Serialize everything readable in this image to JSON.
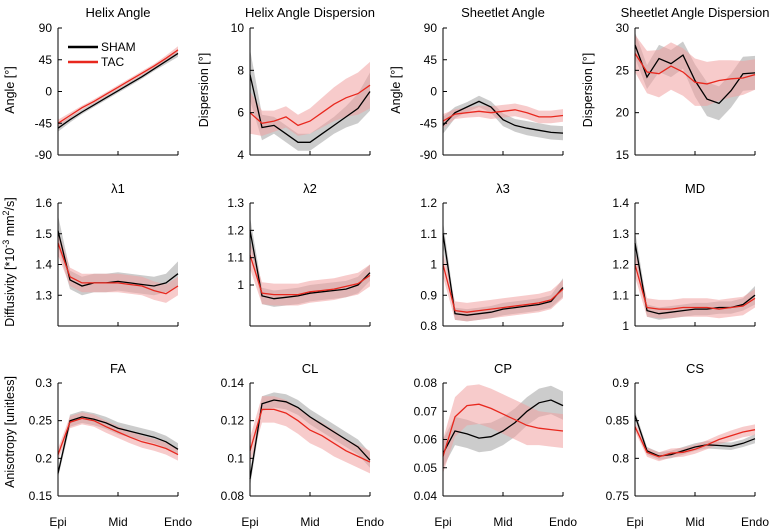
{
  "figure": {
    "row_ylabels": [
      "Angle [°]",
      "Dispersion [°]",
      "Angle [°]",
      "Dispersion [°]",
      "Diffusivity [*10",
      "-3",
      " mm",
      "2",
      "/s]",
      "Anisotropy [unitless]"
    ],
    "xticks": [
      "Epi",
      "Mid",
      "Endo"
    ]
  },
  "legend": [
    {
      "name": "SHAM",
      "color": "#000000"
    },
    {
      "name": "TAC",
      "color": "#e8281e"
    }
  ],
  "colors": {
    "sham": "#000000",
    "sham_band": "#9a9a9a",
    "tac": "#e8281e",
    "tac_band": "#f0a0a0"
  },
  "chart_data": [
    {
      "type": "line",
      "title": "Helix Angle",
      "ylabel": "Angle [°]",
      "ylim": [
        -90,
        90
      ],
      "yticks": [
        "90",
        "45",
        "0",
        "-45",
        "-90"
      ],
      "ytick_values": [
        90,
        45,
        0,
        -45,
        -90
      ],
      "x": [
        0,
        0.1,
        0.2,
        0.3,
        0.4,
        0.5,
        0.6,
        0.7,
        0.8,
        0.9,
        1
      ],
      "series": [
        {
          "name": "SHAM",
          "values": [
            -52,
            -40,
            -29,
            -19,
            -9,
            1,
            11,
            21,
            32,
            43,
            54
          ],
          "band": [
            5,
            4,
            3,
            3,
            3,
            3,
            3,
            3,
            3,
            4,
            5
          ]
        },
        {
          "name": "TAC",
          "values": [
            -45,
            -34,
            -23,
            -14,
            -4,
            6,
            16,
            26,
            36,
            47,
            59
          ],
          "band": [
            5,
            4,
            3,
            3,
            3,
            3,
            3,
            3,
            3,
            4,
            5
          ]
        }
      ]
    },
    {
      "type": "line",
      "title": "Helix Angle Dispersion",
      "ylabel": "Dispersion [°]",
      "ylim": [
        4,
        10
      ],
      "yticks": [
        "10",
        "8",
        "6",
        "4"
      ],
      "ytick_values": [
        10,
        8,
        6,
        4
      ],
      "x": [
        0,
        0.1,
        0.2,
        0.3,
        0.4,
        0.5,
        0.6,
        0.7,
        0.8,
        0.9,
        1
      ],
      "series": [
        {
          "name": "SHAM",
          "values": [
            7.8,
            5.3,
            5.4,
            5.0,
            4.6,
            4.6,
            5.0,
            5.4,
            5.8,
            6.2,
            7.0
          ],
          "band": [
            1.2,
            0.6,
            0.4,
            0.4,
            0.4,
            0.4,
            0.4,
            0.4,
            0.5,
            0.7,
            0.9
          ]
        },
        {
          "name": "TAC",
          "values": [
            6.0,
            5.5,
            5.6,
            5.8,
            5.4,
            5.6,
            6.0,
            6.4,
            6.7,
            6.9,
            7.3
          ],
          "band": [
            1.0,
            0.6,
            0.5,
            0.5,
            0.5,
            0.6,
            0.7,
            0.8,
            0.9,
            1.0,
            1.1
          ]
        }
      ]
    },
    {
      "type": "line",
      "title": "Sheetlet Angle",
      "ylabel": "Angle [°]",
      "ylim": [
        -90,
        90
      ],
      "yticks": [
        "90",
        "45",
        "0",
        "-45",
        "-90"
      ],
      "ytick_values": [
        90,
        45,
        0,
        -45,
        -90
      ],
      "x": [
        0,
        0.1,
        0.2,
        0.3,
        0.4,
        0.5,
        0.6,
        0.7,
        0.8,
        0.9,
        1
      ],
      "series": [
        {
          "name": "SHAM",
          "values": [
            -48,
            -30,
            -22,
            -14,
            -22,
            -40,
            -48,
            -52,
            -55,
            -58,
            -59
          ],
          "band": [
            12,
            8,
            7,
            8,
            8,
            9,
            9,
            10,
            10,
            10,
            10
          ]
        },
        {
          "name": "TAC",
          "values": [
            -42,
            -32,
            -30,
            -28,
            -30,
            -28,
            -26,
            -30,
            -36,
            -36,
            -34
          ],
          "band": [
            10,
            7,
            7,
            8,
            9,
            9,
            9,
            9,
            9,
            9,
            9
          ]
        }
      ]
    },
    {
      "type": "line",
      "title": "Sheetlet Angle Dispersion",
      "ylabel": "Dispersion [°]",
      "ylim": [
        15,
        30
      ],
      "yticks": [
        "30",
        "25",
        "20",
        "15"
      ],
      "ytick_values": [
        30,
        25,
        20,
        15
      ],
      "x": [
        0,
        0.1,
        0.2,
        0.3,
        0.4,
        0.5,
        0.6,
        0.7,
        0.8,
        0.9,
        1
      ],
      "series": [
        {
          "name": "SHAM",
          "values": [
            28,
            24.2,
            26.4,
            25.8,
            26.8,
            23.8,
            21.6,
            21.1,
            22.6,
            24.6,
            24.7
          ],
          "band": [
            1.5,
            1.4,
            1.6,
            1.6,
            1.6,
            1.9,
            2.0,
            2.0,
            2.0,
            2.0,
            2.0
          ]
        },
        {
          "name": "TAC",
          "values": [
            27,
            24.8,
            24.6,
            25.5,
            24.8,
            23.6,
            23.4,
            23.8,
            24.0,
            24.1,
            24.5
          ],
          "band": [
            2.2,
            2.5,
            2.8,
            2.8,
            2.8,
            2.8,
            2.6,
            2.4,
            2.2,
            2.0,
            1.8
          ]
        }
      ]
    },
    {
      "type": "line",
      "title": "λ1",
      "ylabel": "",
      "ylim": [
        1.2,
        1.6
      ],
      "yticks": [
        "1.6",
        "1.5",
        "1.4",
        "1.3"
      ],
      "ytick_values": [
        1.6,
        1.5,
        1.4,
        1.3
      ],
      "x": [
        0,
        0.1,
        0.2,
        0.3,
        0.4,
        0.5,
        0.6,
        0.7,
        0.8,
        0.9,
        1
      ],
      "series": [
        {
          "name": "SHAM",
          "values": [
            1.51,
            1.35,
            1.33,
            1.34,
            1.34,
            1.345,
            1.34,
            1.335,
            1.33,
            1.34,
            1.37
          ],
          "band": [
            0.05,
            0.03,
            0.03,
            0.03,
            0.03,
            0.03,
            0.03,
            0.03,
            0.03,
            0.03,
            0.04
          ]
        },
        {
          "name": "TAC",
          "values": [
            1.47,
            1.36,
            1.34,
            1.34,
            1.34,
            1.34,
            1.335,
            1.33,
            1.315,
            1.305,
            1.33
          ],
          "band": [
            0.04,
            0.03,
            0.03,
            0.03,
            0.03,
            0.03,
            0.03,
            0.03,
            0.03,
            0.03,
            0.03
          ]
        }
      ]
    },
    {
      "type": "line",
      "title": "λ2",
      "ylabel": "",
      "ylim": [
        0.85,
        1.3
      ],
      "yticks": [
        "1.3",
        "1.2",
        "1.1",
        "1"
      ],
      "ytick_values": [
        1.3,
        1.2,
        1.1,
        1
      ],
      "x": [
        0,
        0.1,
        0.2,
        0.3,
        0.4,
        0.5,
        0.6,
        0.7,
        0.8,
        0.9,
        1
      ],
      "series": [
        {
          "name": "SHAM",
          "values": [
            1.2,
            0.96,
            0.95,
            0.955,
            0.96,
            0.97,
            0.975,
            0.98,
            0.985,
            1.0,
            1.045
          ],
          "band": [
            0.05,
            0.03,
            0.03,
            0.03,
            0.03,
            0.03,
            0.03,
            0.03,
            0.03,
            0.03,
            0.03
          ]
        },
        {
          "name": "TAC",
          "values": [
            1.11,
            0.97,
            0.965,
            0.965,
            0.965,
            0.975,
            0.98,
            0.985,
            0.995,
            1.005,
            1.035
          ],
          "band": [
            0.05,
            0.04,
            0.04,
            0.04,
            0.04,
            0.04,
            0.04,
            0.04,
            0.04,
            0.04,
            0.04
          ]
        }
      ]
    },
    {
      "type": "line",
      "title": "λ3",
      "ylabel": "",
      "ylim": [
        0.8,
        1.2
      ],
      "yticks": [
        "1.2",
        "1.1",
        "1",
        "0.9",
        "0.8"
      ],
      "ytick_values": [
        1.2,
        1.1,
        1,
        0.9,
        0.8
      ],
      "x": [
        0,
        0.1,
        0.2,
        0.3,
        0.4,
        0.5,
        0.6,
        0.7,
        0.8,
        0.9,
        1
      ],
      "series": [
        {
          "name": "SHAM",
          "values": [
            1.1,
            0.84,
            0.835,
            0.84,
            0.845,
            0.855,
            0.86,
            0.865,
            0.87,
            0.88,
            0.925
          ],
          "band": [
            0.04,
            0.02,
            0.02,
            0.02,
            0.02,
            0.02,
            0.02,
            0.02,
            0.02,
            0.02,
            0.03
          ]
        },
        {
          "name": "TAC",
          "values": [
            1.0,
            0.85,
            0.845,
            0.85,
            0.855,
            0.86,
            0.865,
            0.87,
            0.875,
            0.885,
            0.92
          ],
          "band": [
            0.04,
            0.03,
            0.03,
            0.03,
            0.03,
            0.03,
            0.03,
            0.03,
            0.03,
            0.03,
            0.03
          ]
        }
      ]
    },
    {
      "type": "line",
      "title": "MD",
      "ylabel": "",
      "ylim": [
        1,
        1.4
      ],
      "yticks": [
        "1.4",
        "1.3",
        "1.2",
        "1.1",
        "1"
      ],
      "ytick_values": [
        1.4,
        1.3,
        1.2,
        1.1,
        1
      ],
      "x": [
        0,
        0.1,
        0.2,
        0.3,
        0.4,
        0.5,
        0.6,
        0.7,
        0.8,
        0.9,
        1
      ],
      "series": [
        {
          "name": "SHAM",
          "values": [
            1.27,
            1.05,
            1.04,
            1.045,
            1.05,
            1.055,
            1.055,
            1.06,
            1.06,
            1.07,
            1.1
          ],
          "band": [
            0.04,
            0.02,
            0.02,
            0.02,
            0.02,
            0.02,
            0.02,
            0.02,
            0.02,
            0.02,
            0.03
          ]
        },
        {
          "name": "TAC",
          "values": [
            1.2,
            1.06,
            1.055,
            1.055,
            1.06,
            1.06,
            1.06,
            1.055,
            1.06,
            1.065,
            1.09
          ],
          "band": [
            0.04,
            0.03,
            0.03,
            0.03,
            0.03,
            0.03,
            0.03,
            0.03,
            0.03,
            0.03,
            0.03
          ]
        }
      ]
    },
    {
      "type": "line",
      "title": "FA",
      "ylabel": "",
      "ylim": [
        0.15,
        0.3
      ],
      "yticks": [
        "0.3",
        "0.25",
        "0.2",
        "0.15"
      ],
      "ytick_values": [
        0.3,
        0.25,
        0.2,
        0.15
      ],
      "x": [
        0,
        0.1,
        0.2,
        0.3,
        0.4,
        0.5,
        0.6,
        0.7,
        0.8,
        0.9,
        1
      ],
      "series": [
        {
          "name": "SHAM",
          "values": [
            0.18,
            0.25,
            0.255,
            0.252,
            0.247,
            0.24,
            0.236,
            0.232,
            0.228,
            0.222,
            0.212
          ],
          "band": [
            0.006,
            0.008,
            0.008,
            0.008,
            0.008,
            0.008,
            0.008,
            0.008,
            0.008,
            0.008,
            0.008
          ]
        },
        {
          "name": "TAC",
          "values": [
            0.205,
            0.248,
            0.253,
            0.25,
            0.242,
            0.235,
            0.228,
            0.222,
            0.218,
            0.213,
            0.205
          ],
          "band": [
            0.008,
            0.008,
            0.008,
            0.008,
            0.008,
            0.008,
            0.008,
            0.008,
            0.008,
            0.008,
            0.008
          ]
        }
      ]
    },
    {
      "type": "line",
      "title": "CL",
      "ylabel": "",
      "ylim": [
        0.08,
        0.14
      ],
      "yticks": [
        "0.14",
        "0.12",
        "0.1",
        "0.08"
      ],
      "ytick_values": [
        0.14,
        0.12,
        0.1,
        0.08
      ],
      "x": [
        0,
        0.1,
        0.2,
        0.3,
        0.4,
        0.5,
        0.6,
        0.7,
        0.8,
        0.9,
        1
      ],
      "series": [
        {
          "name": "SHAM",
          "values": [
            0.089,
            0.129,
            0.131,
            0.13,
            0.127,
            0.122,
            0.118,
            0.114,
            0.11,
            0.106,
            0.099
          ],
          "band": [
            0.004,
            0.004,
            0.004,
            0.004,
            0.004,
            0.004,
            0.004,
            0.004,
            0.004,
            0.004,
            0.004
          ]
        },
        {
          "name": "TAC",
          "values": [
            0.104,
            0.126,
            0.126,
            0.124,
            0.12,
            0.115,
            0.112,
            0.108,
            0.104,
            0.101,
            0.098
          ],
          "band": [
            0.007,
            0.007,
            0.007,
            0.007,
            0.007,
            0.007,
            0.007,
            0.007,
            0.006,
            0.006,
            0.006
          ]
        }
      ]
    },
    {
      "type": "line",
      "title": "CP",
      "ylabel": "",
      "ylim": [
        0.04,
        0.08
      ],
      "yticks": [
        "0.08",
        "0.07",
        "0.06",
        "0.05",
        "0.04"
      ],
      "ytick_values": [
        0.08,
        0.07,
        0.06,
        0.05,
        0.04
      ],
      "x": [
        0,
        0.1,
        0.2,
        0.3,
        0.4,
        0.5,
        0.6,
        0.7,
        0.8,
        0.9,
        1
      ],
      "series": [
        {
          "name": "SHAM",
          "values": [
            0.055,
            0.063,
            0.062,
            0.0605,
            0.061,
            0.063,
            0.066,
            0.07,
            0.073,
            0.074,
            0.072
          ],
          "band": [
            0.005,
            0.005,
            0.005,
            0.005,
            0.005,
            0.005,
            0.005,
            0.005,
            0.005,
            0.005,
            0.005
          ]
        },
        {
          "name": "TAC",
          "values": [
            0.054,
            0.068,
            0.072,
            0.0725,
            0.071,
            0.069,
            0.067,
            0.065,
            0.064,
            0.0635,
            0.063
          ],
          "band": [
            0.006,
            0.007,
            0.007,
            0.007,
            0.007,
            0.007,
            0.007,
            0.007,
            0.006,
            0.006,
            0.006
          ]
        }
      ]
    },
    {
      "type": "line",
      "title": "CS",
      "ylabel": "",
      "ylim": [
        0.75,
        0.9
      ],
      "yticks": [
        "0.9",
        "0.85",
        "0.8",
        "0.75"
      ],
      "ytick_values": [
        0.9,
        0.85,
        0.8,
        0.75
      ],
      "x": [
        0,
        0.1,
        0.2,
        0.3,
        0.4,
        0.5,
        0.6,
        0.7,
        0.8,
        0.9,
        1
      ],
      "series": [
        {
          "name": "SHAM",
          "values": [
            0.857,
            0.81,
            0.803,
            0.805,
            0.81,
            0.815,
            0.818,
            0.817,
            0.816,
            0.82,
            0.826
          ],
          "band": [
            0.006,
            0.005,
            0.005,
            0.005,
            0.005,
            0.005,
            0.005,
            0.005,
            0.005,
            0.005,
            0.006
          ]
        },
        {
          "name": "TAC",
          "values": [
            0.842,
            0.808,
            0.802,
            0.807,
            0.808,
            0.812,
            0.818,
            0.825,
            0.83,
            0.835,
            0.838
          ],
          "band": [
            0.006,
            0.006,
            0.006,
            0.006,
            0.006,
            0.006,
            0.006,
            0.006,
            0.007,
            0.007,
            0.007
          ]
        }
      ]
    }
  ]
}
